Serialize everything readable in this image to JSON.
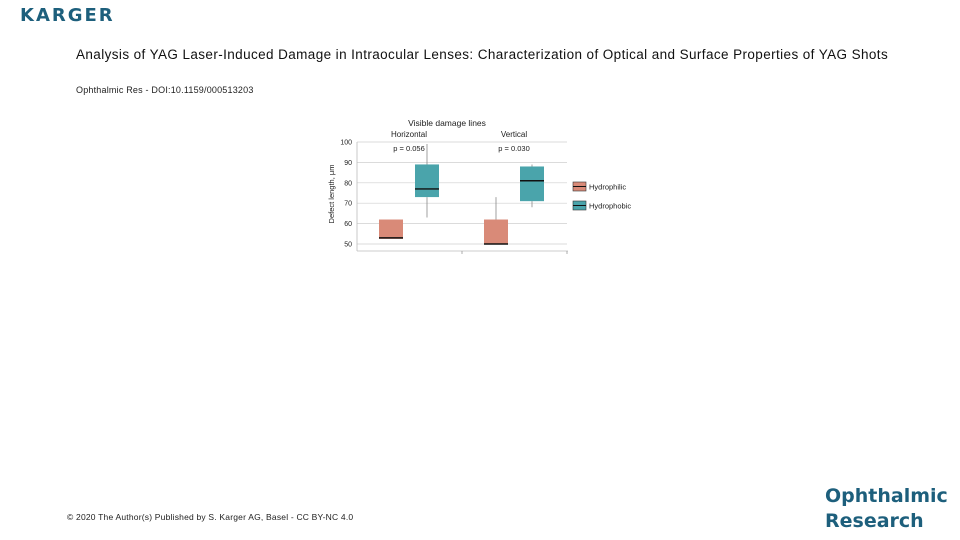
{
  "header": {
    "logo_text": "KARGER",
    "article_title": "Analysis of YAG Laser-Induced Damage in Intraocular Lenses: Characterization of Optical and Surface Properties of YAG Shots",
    "journal_doi": "Ophthalmic Res - DOI:10.1159/000513203"
  },
  "footer": {
    "copyright": "© 2020 The Author(s) Published by S. Karger AG, Basel - CC BY-NC 4.0",
    "journal_line1": "Ophthalmic",
    "journal_line2": "Research"
  },
  "colors": {
    "hydrophilic": "#d98a78",
    "hydrophobic": "#4aa4ab",
    "grid": "#cfcfcf",
    "brand": "#1d5f7c"
  },
  "chart_data": {
    "type": "boxplot",
    "title": "Visible damage lines",
    "ylabel": "Defect length, μm",
    "ylim": [
      50,
      100
    ],
    "yticks": [
      50,
      60,
      70,
      80,
      90,
      100
    ],
    "grid": true,
    "legend_position": "right",
    "groups": [
      {
        "label": "Horizontal",
        "p_value": "p = 0.056"
      },
      {
        "label": "Vertical",
        "p_value": "p = 0.030"
      }
    ],
    "series": [
      {
        "name": "Hydrophilic",
        "boxes": [
          {
            "group": "Horizontal",
            "min": 52.5,
            "q1": 52.5,
            "median": 53,
            "q3": 62,
            "max": 62
          },
          {
            "group": "Vertical",
            "min": 50,
            "q1": 50,
            "median": 50,
            "q3": 62,
            "max": 73
          }
        ]
      },
      {
        "name": "Hydrophobic",
        "boxes": [
          {
            "group": "Horizontal",
            "min": 63,
            "q1": 73,
            "median": 77,
            "q3": 89,
            "max": 99
          },
          {
            "group": "Vertical",
            "min": 68,
            "q1": 71,
            "median": 81,
            "q3": 88,
            "max": 89
          }
        ]
      }
    ]
  }
}
